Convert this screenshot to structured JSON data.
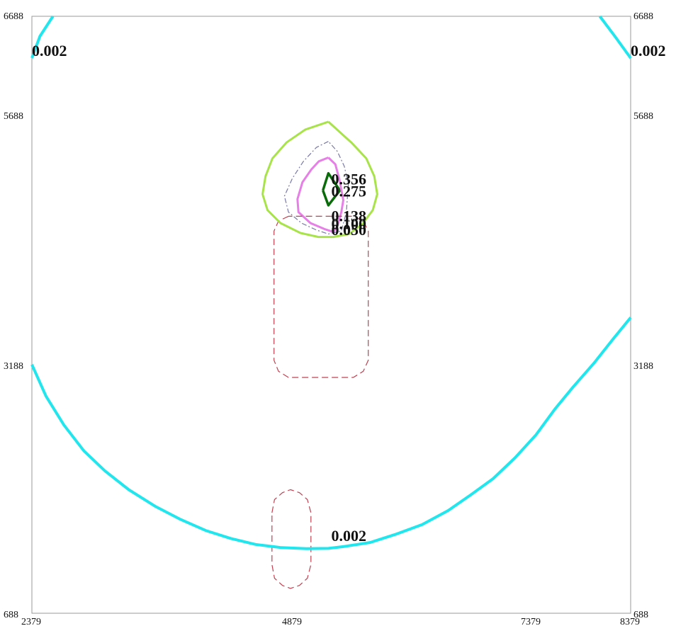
{
  "chart_data": {
    "type": "contour",
    "x_ticks": [
      "2379",
      "4879",
      "7379",
      "8379"
    ],
    "y_ticks": [
      "6688",
      "5688",
      "3188",
      "688"
    ],
    "xlim": [
      2379,
      8379
    ],
    "ylim": [
      688,
      6688
    ],
    "grid": false,
    "legend": "none",
    "contours": [
      {
        "level": "0.356",
        "color": "#0a6b0a",
        "style": "solid",
        "label_at": [
          5379,
          4998
        ],
        "points": [
          [
            5295,
            4938
          ],
          [
            5350,
            5110
          ],
          [
            5465,
            4938
          ],
          [
            5350,
            4788
          ],
          [
            5295,
            4938
          ]
        ]
      },
      {
        "level": "0.275",
        "color": "#e680e6",
        "style": "solid",
        "label_at": [
          5379,
          4878
        ],
        "points": [
          [
            5350,
            5268
          ],
          [
            5255,
            5230
          ],
          [
            5180,
            5150
          ],
          [
            5090,
            5020
          ],
          [
            5040,
            4850
          ],
          [
            5050,
            4720
          ],
          [
            5170,
            4610
          ],
          [
            5310,
            4550
          ],
          [
            5400,
            4520
          ],
          [
            5440,
            4580
          ],
          [
            5480,
            4720
          ],
          [
            5500,
            4840
          ],
          [
            5460,
            5050
          ],
          [
            5420,
            5200
          ],
          [
            5350,
            5268
          ]
        ]
      },
      {
        "level": "0.138",
        "color": "#7878a8",
        "style": "dashdot",
        "label_at": [
          5379,
          4628
        ],
        "points": [
          [
            5350,
            5430
          ],
          [
            5230,
            5370
          ],
          [
            5100,
            5230
          ],
          [
            4990,
            5060
          ],
          [
            4910,
            4880
          ],
          [
            4950,
            4720
          ],
          [
            5080,
            4610
          ],
          [
            5230,
            4540
          ],
          [
            5350,
            4500
          ],
          [
            5480,
            4530
          ],
          [
            5530,
            4720
          ],
          [
            5550,
            5000
          ],
          [
            5510,
            5180
          ],
          [
            5440,
            5330
          ],
          [
            5350,
            5430
          ]
        ]
      },
      {
        "level": "0.100",
        "color": "#c04050",
        "style": "dashed",
        "label_at": [
          5379,
          4548
        ],
        "points": [
          [
            4950,
            4678
          ],
          [
            4850,
            4630
          ],
          [
            4805,
            4530
          ],
          [
            4805,
            3230
          ],
          [
            4850,
            3120
          ],
          [
            4950,
            3058
          ],
          [
            5600,
            3058
          ],
          [
            5700,
            3120
          ],
          [
            5750,
            3230
          ],
          [
            5750,
            4530
          ],
          [
            5700,
            4630
          ],
          [
            5600,
            4678
          ],
          [
            4950,
            4678
          ]
        ]
      },
      {
        "level": "0.100",
        "color": "#c04050",
        "style": "dashed",
        "label_at": null,
        "points": [
          [
            4785,
            1698
          ],
          [
            4810,
            1830
          ],
          [
            4890,
            1900
          ],
          [
            4970,
            1930
          ],
          [
            5060,
            1900
          ],
          [
            5140,
            1830
          ],
          [
            5175,
            1698
          ],
          [
            5175,
            1178
          ],
          [
            5140,
            1040
          ],
          [
            5060,
            968
          ],
          [
            4970,
            938
          ],
          [
            4890,
            968
          ],
          [
            4810,
            1040
          ],
          [
            4785,
            1178
          ],
          [
            4785,
            1698
          ]
        ]
      },
      {
        "level": "0.050",
        "color": "#a8e34a",
        "style": "solid",
        "label_at": [
          5379,
          4488
        ],
        "points": [
          [
            5350,
            5628
          ],
          [
            5120,
            5550
          ],
          [
            4930,
            5420
          ],
          [
            4790,
            5260
          ],
          [
            4720,
            5080
          ],
          [
            4690,
            4900
          ],
          [
            4740,
            4740
          ],
          [
            4870,
            4610
          ],
          [
            5070,
            4510
          ],
          [
            5250,
            4470
          ],
          [
            5400,
            4470
          ],
          [
            5560,
            4500
          ],
          [
            5690,
            4600
          ],
          [
            5795,
            4740
          ],
          [
            5840,
            4900
          ],
          [
            5810,
            5080
          ],
          [
            5730,
            5260
          ],
          [
            5580,
            5420
          ],
          [
            5350,
            5628
          ]
        ]
      },
      {
        "level": "0.002",
        "color": "#22e6ee",
        "style": "solid",
        "label_at": [
          5379,
          1413
        ],
        "points": [
          [
            2379,
            3188
          ],
          [
            2520,
            2870
          ],
          [
            2700,
            2580
          ],
          [
            2900,
            2320
          ],
          [
            3110,
            2120
          ],
          [
            3350,
            1930
          ],
          [
            3620,
            1760
          ],
          [
            3870,
            1630
          ],
          [
            4120,
            1520
          ],
          [
            4370,
            1440
          ],
          [
            4620,
            1380
          ],
          [
            4879,
            1348
          ],
          [
            5130,
            1338
          ],
          [
            5350,
            1340
          ],
          [
            5500,
            1358
          ],
          [
            5770,
            1400
          ],
          [
            6020,
            1480
          ],
          [
            6290,
            1580
          ],
          [
            6550,
            1720
          ],
          [
            6780,
            1880
          ],
          [
            7000,
            2040
          ],
          [
            7220,
            2250
          ],
          [
            7430,
            2480
          ],
          [
            7620,
            2740
          ],
          [
            7800,
            2960
          ],
          [
            8010,
            3200
          ],
          [
            8200,
            3440
          ],
          [
            8379,
            3660
          ]
        ]
      },
      {
        "level": "0.002",
        "color": "#22e6ee",
        "style": "solid",
        "label_at": [
          2379,
          6288
        ],
        "points": [
          [
            2379,
            6268
          ],
          [
            2460,
            6488
          ],
          [
            2590,
            6688
          ]
        ]
      },
      {
        "level": "0.002",
        "color": "#22e6ee",
        "style": "solid",
        "label_at": [
          8379,
          6288
        ],
        "points": [
          [
            8070,
            6688
          ],
          [
            8220,
            6488
          ],
          [
            8379,
            6268
          ]
        ]
      }
    ]
  }
}
